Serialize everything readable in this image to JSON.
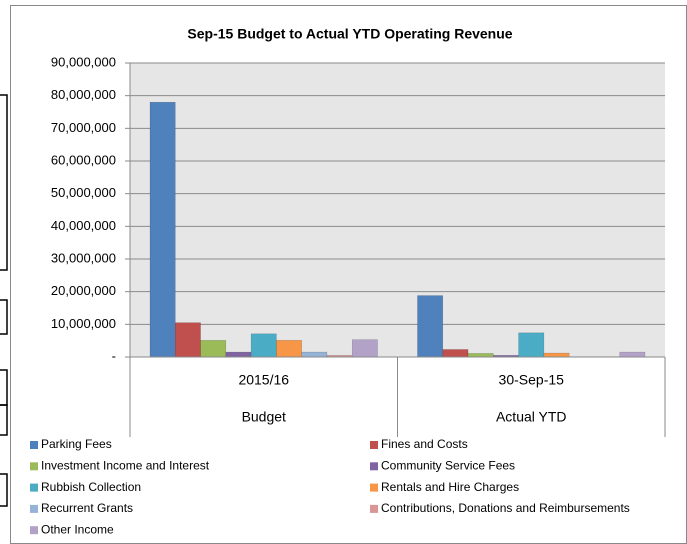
{
  "chart_data": {
    "type": "bar",
    "title": "Sep-15 Budget to Actual YTD Operating Revenue",
    "categories": [
      "2015/16",
      "30-Sep-15"
    ],
    "category_groups": [
      "Budget",
      "Actual YTD"
    ],
    "series": [
      {
        "name": "Parking Fees",
        "color": "#4f81bd",
        "values": [
          78000000,
          18800000
        ]
      },
      {
        "name": "Fines and Costs",
        "color": "#c0504d",
        "values": [
          10500000,
          2300000
        ]
      },
      {
        "name": "Investment Income and Interest",
        "color": "#9bbb59",
        "values": [
          5100000,
          1100000
        ]
      },
      {
        "name": "Community Service Fees",
        "color": "#8064a2",
        "values": [
          1500000,
          500000
        ]
      },
      {
        "name": "Rubbish Collection",
        "color": "#4bacc6",
        "values": [
          7100000,
          7400000
        ]
      },
      {
        "name": "Rentals and Hire Charges",
        "color": "#f79646",
        "values": [
          5100000,
          1200000
        ]
      },
      {
        "name": "Recurrent Grants",
        "color": "#95b3d7",
        "values": [
          1500000,
          100000
        ]
      },
      {
        "name": "Contributions, Donations and Reimbursements",
        "color": "#d99694",
        "values": [
          500000,
          100000
        ]
      },
      {
        "name": "Other Income",
        "color": "#b3a2c7",
        "values": [
          5300000,
          1500000
        ]
      }
    ],
    "ylim": [
      0,
      90000000
    ],
    "yticks": [
      {
        "value": 0,
        "label": "-"
      },
      {
        "value": 10000000,
        "label": "10,000,000"
      },
      {
        "value": 20000000,
        "label": "20,000,000"
      },
      {
        "value": 30000000,
        "label": "30,000,000"
      },
      {
        "value": 40000000,
        "label": "40,000,000"
      },
      {
        "value": 50000000,
        "label": "50,000,000"
      },
      {
        "value": 60000000,
        "label": "60,000,000"
      },
      {
        "value": 70000000,
        "label": "70,000,000"
      },
      {
        "value": 80000000,
        "label": "80,000,000"
      },
      {
        "value": 90000000,
        "label": "90,000,000"
      }
    ],
    "grid": true,
    "legend": "bottom"
  }
}
